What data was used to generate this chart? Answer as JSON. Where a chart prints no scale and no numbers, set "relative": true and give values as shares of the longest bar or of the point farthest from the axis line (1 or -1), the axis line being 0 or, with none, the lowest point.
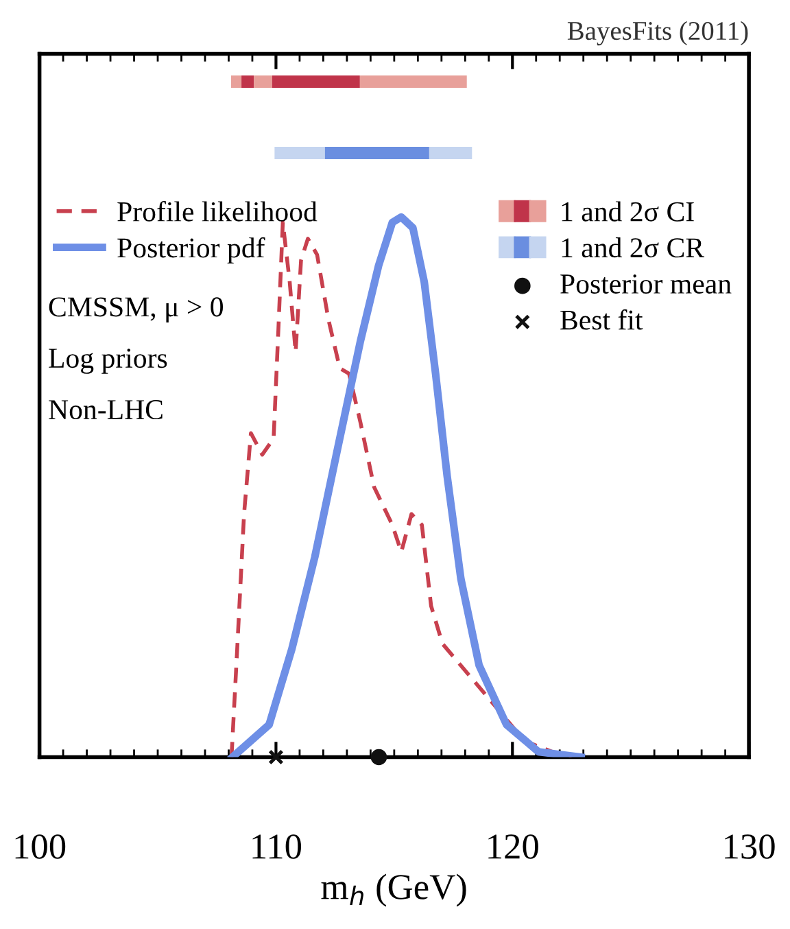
{
  "chart_data": [
    {
      "type": "bar",
      "orientation": "horizontal",
      "categories": [
        null
      ],
      "xlim": [
        100,
        130
      ],
      "tick_labels": false,
      "annotations": [
        "1 and 2σ CI"
      ],
      "series": [
        {
          "base": [
            108.1
          ],
          "values": [
            0.44
          ],
          "colors": [
            "#e8a09a"
          ]
        },
        {
          "base": [
            108.54
          ],
          "values": [
            0.53
          ],
          "colors": [
            "#c0344a"
          ]
        },
        {
          "base": [
            109.07
          ],
          "values": [
            0.77
          ],
          "colors": [
            "#e8a09a"
          ]
        },
        {
          "base": [
            109.84
          ],
          "values": [
            3.71
          ],
          "colors": [
            "#c0344a"
          ]
        },
        {
          "base": [
            113.55
          ],
          "values": [
            4.52
          ],
          "colors": [
            "#e8a09a"
          ]
        }
      ]
    },
    {
      "type": "bar",
      "orientation": "horizontal",
      "categories": [
        null
      ],
      "xlim": [
        100,
        130
      ],
      "tick_labels": false,
      "annotations": [
        "1 and 2σ CR"
      ],
      "series": [
        {
          "base": [
            109.94
          ],
          "values": [
            2.13
          ],
          "colors": [
            "#c5d5f0"
          ]
        },
        {
          "base": [
            112.07
          ],
          "values": [
            4.41
          ],
          "colors": [
            "#6a8ee0"
          ]
        },
        {
          "base": [
            116.48
          ],
          "values": [
            1.81
          ],
          "colors": [
            "#c5d5f0"
          ]
        }
      ]
    },
    {
      "type": "line",
      "relative": true,
      "xlim": [
        100,
        130
      ],
      "xticks": [
        100,
        110,
        120,
        130
      ],
      "xlabel": "m$_{h}$ (GeV)",
      "legend": "top",
      "annotations": [
        "CMSSM, μ > 0",
        "Log priors",
        "Non-LHC",
        "BayesFits (2011)"
      ],
      "series": [
        {
          "name": "Profile likelihood",
          "color": "#c8404e",
          "line_style": "dashed",
          "x": [
            108.12,
            108.36,
            108.65,
            108.94,
            109.42,
            109.9,
            110.1,
            110.29,
            110.58,
            110.83,
            111.06,
            111.35,
            111.74,
            112.22,
            112.7,
            113.09,
            113.57,
            114.15,
            114.92,
            115.3,
            115.73,
            116.17,
            116.56,
            117.04,
            118.2,
            119.36,
            120.51,
            121.67,
            122.5
          ],
          "values": [
            0,
            0.2,
            0.45,
            0.6,
            0.56,
            0.59,
            0.79,
            0.99,
            0.88,
            0.75,
            0.92,
            0.96,
            0.93,
            0.81,
            0.72,
            0.71,
            0.62,
            0.5,
            0.43,
            0.38,
            0.45,
            0.43,
            0.28,
            0.21,
            0.15,
            0.09,
            0.03,
            0.01,
            0
          ]
        },
        {
          "name": "Posterior pdf",
          "color": "#6e8fe6",
          "line_style": "solid",
          "x": [
            108.16,
            109.71,
            110.67,
            111.64,
            112.6,
            113.57,
            114.34,
            114.92,
            115.3,
            115.79,
            116.27,
            116.75,
            117.24,
            117.82,
            118.59,
            119.75,
            121.1,
            122.9
          ],
          "values": [
            0,
            0.06,
            0.2,
            0.37,
            0.57,
            0.77,
            0.91,
            0.99,
            1.0,
            0.98,
            0.88,
            0.71,
            0.52,
            0.33,
            0.17,
            0.06,
            0.01,
            0
          ]
        },
        {
          "name": "Posterior mean",
          "type": "scatter",
          "marker": "circle",
          "color": "#111111",
          "x": [
            114.35
          ],
          "values": [
            0
          ]
        },
        {
          "name": "Best fit",
          "type": "scatter",
          "marker": "cross",
          "color": "#111111",
          "x": [
            110.0
          ],
          "values": [
            0
          ]
        }
      ]
    }
  ]
}
